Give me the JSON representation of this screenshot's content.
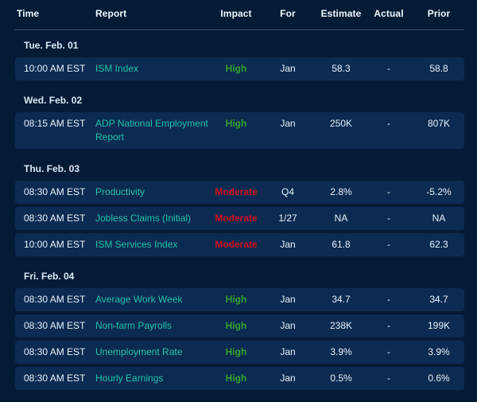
{
  "table": {
    "columns": [
      "Time",
      "Report",
      "Impact",
      "For",
      "Estimate",
      "Actual",
      "Prior"
    ],
    "sections": [
      {
        "date": "Tue. Feb. 01",
        "rows": [
          {
            "time": "10:00 AM EST",
            "report": "ISM Index",
            "impact": "High",
            "for": "Jan",
            "estimate": "58.3",
            "actual": "-",
            "prior": "58.8"
          }
        ]
      },
      {
        "date": "Wed. Feb. 02",
        "rows": [
          {
            "time": "08:15 AM EST",
            "report": "ADP National Employment Report",
            "impact": "High",
            "for": "Jan",
            "estimate": "250K",
            "actual": "-",
            "prior": "807K"
          }
        ]
      },
      {
        "date": "Thu. Feb. 03",
        "rows": [
          {
            "time": "08:30 AM EST",
            "report": "Productivity",
            "impact": "Moderate",
            "for": "Q4",
            "estimate": "2.8%",
            "actual": "-",
            "prior": "-5.2%"
          },
          {
            "time": "08:30 AM EST",
            "report": "Jobless Claims (Initial)",
            "impact": "Moderate",
            "for": "1/27",
            "estimate": "NA",
            "actual": "-",
            "prior": "NA"
          },
          {
            "time": "10:00 AM EST",
            "report": "ISM Services Index",
            "impact": "Moderate",
            "for": "Jan",
            "estimate": "61.8",
            "actual": "-",
            "prior": "62.3"
          }
        ]
      },
      {
        "date": "Fri. Feb. 04",
        "rows": [
          {
            "time": "08:30 AM EST",
            "report": "Average Work Week",
            "impact": "High",
            "for": "Jan",
            "estimate": "34.7",
            "actual": "-",
            "prior": "34.7"
          },
          {
            "time": "08:30 AM EST",
            "report": "Non-farm Payrolls",
            "impact": "High",
            "for": "Jan",
            "estimate": "238K",
            "actual": "-",
            "prior": "199K"
          },
          {
            "time": "08:30 AM EST",
            "report": "Unemployment Rate",
            "impact": "High",
            "for": "Jan",
            "estimate": "3.9%",
            "actual": "-",
            "prior": "3.9%"
          },
          {
            "time": "08:30 AM EST",
            "report": "Hourly Earnings",
            "impact": "High",
            "for": "Jan",
            "estimate": "0.5%",
            "actual": "-",
            "prior": "0.6%"
          }
        ]
      }
    ]
  },
  "colors": {
    "background": "#041b36",
    "row_background": "#0c2b52",
    "text": "#e9f1fa",
    "report_link": "#1fc3a7",
    "impact_high": "#35a22e",
    "impact_moderate": "#d10f1f",
    "divider": "#3d4f63"
  }
}
